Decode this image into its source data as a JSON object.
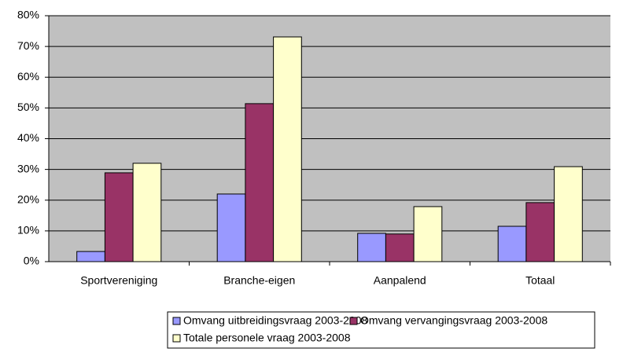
{
  "chart_data": {
    "type": "bar",
    "categories": [
      "Sportvereniging",
      "Branche-eigen",
      "Aanpalend",
      "Totaal"
    ],
    "series": [
      {
        "name": "Omvang uitbreidingsvraag 2003-2008",
        "color": "#9999ff",
        "values": [
          3.3,
          22.0,
          9.2,
          11.5
        ]
      },
      {
        "name": "Omvang vervangingsvraag 2003-2008",
        "color": "#993366",
        "values": [
          28.9,
          51.4,
          9.0,
          19.2
        ]
      },
      {
        "name": "Totale personele vraag 2003-2008",
        "color": "#ffffcc",
        "values": [
          32.0,
          73.1,
          17.9,
          30.9
        ]
      }
    ],
    "ylim": [
      0,
      80
    ],
    "yticks": [
      {
        "value": 0,
        "label": "0%"
      },
      {
        "value": 10,
        "label": "10%"
      },
      {
        "value": 20,
        "label": "20%"
      },
      {
        "value": 30,
        "label": "30%"
      },
      {
        "value": 40,
        "label": "40%"
      },
      {
        "value": 50,
        "label": "50%"
      },
      {
        "value": 60,
        "label": "60%"
      },
      {
        "value": 70,
        "label": "70%"
      },
      {
        "value": 80,
        "label": "80%"
      }
    ],
    "grid": true,
    "legend": "bottom"
  }
}
